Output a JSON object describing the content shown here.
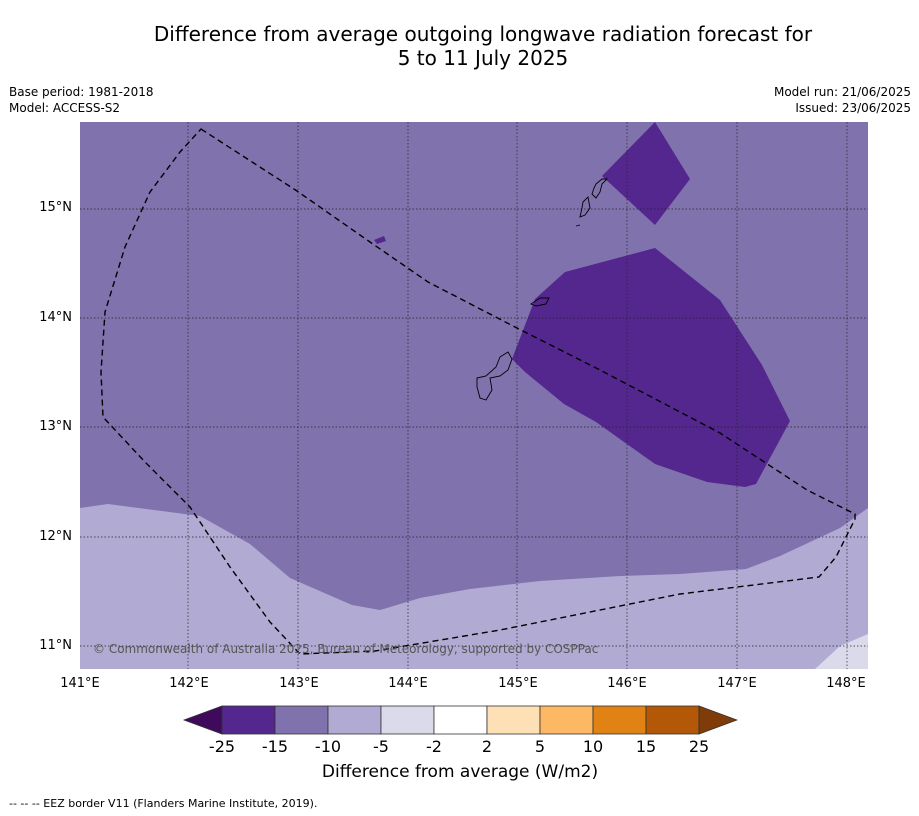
{
  "title_line1": "Difference from average outgoing longwave radiation forecast for",
  "title_line2": "5 to 11 July 2025",
  "base_period": "Base period: 1981-2018",
  "model": "Model: ACCESS-S2",
  "model_run": "Model run: 21/06/2025",
  "issued": "Issued: 23/06/2025",
  "lat_labels": [
    "15°N",
    "14°N",
    "13°N",
    "12°N",
    "11°N"
  ],
  "lon_labels": [
    "141°E",
    "142°E",
    "143°E",
    "144°E",
    "145°E",
    "146°E",
    "147°E",
    "148°E"
  ],
  "credit": "© Commonwealth of Australia 2025, Bureau of Meteorology, supported by COSPPac",
  "colorbar": {
    "ticks": [
      "-25",
      "-15",
      "-10",
      "-5",
      "-2",
      "2",
      "5",
      "10",
      "15",
      "25"
    ],
    "colors": [
      "#3f0a5b",
      "#54278f",
      "#8072ad",
      "#b1aad2",
      "#dadaeb",
      "#ffffff",
      "#fde0b6",
      "#fdb863",
      "#e08214",
      "#b35806",
      "#7f3b08"
    ],
    "title": "Difference from average (W/m2)"
  },
  "footer": "--  --  -- EEZ border V11 (Flanders Marine Institute, 2019)."
}
